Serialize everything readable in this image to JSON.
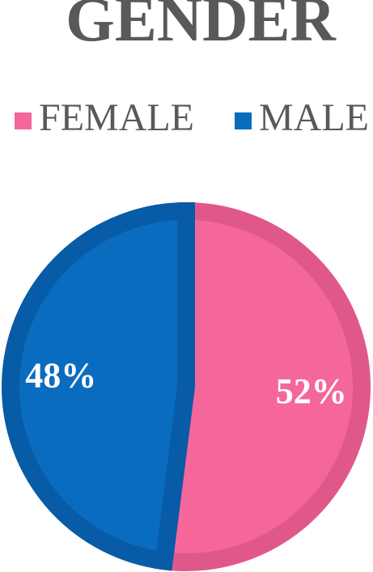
{
  "chart_data": {
    "type": "pie",
    "title": "GENDER",
    "categories": [
      "FEMALE",
      "MALE"
    ],
    "values": [
      52,
      48
    ],
    "value_labels": [
      "52%",
      "48%"
    ],
    "colors": [
      "#f5679a",
      "#0a6cbf"
    ],
    "edge_colors": [
      "#e0588a",
      "#085ba6"
    ],
    "legend": "top"
  }
}
